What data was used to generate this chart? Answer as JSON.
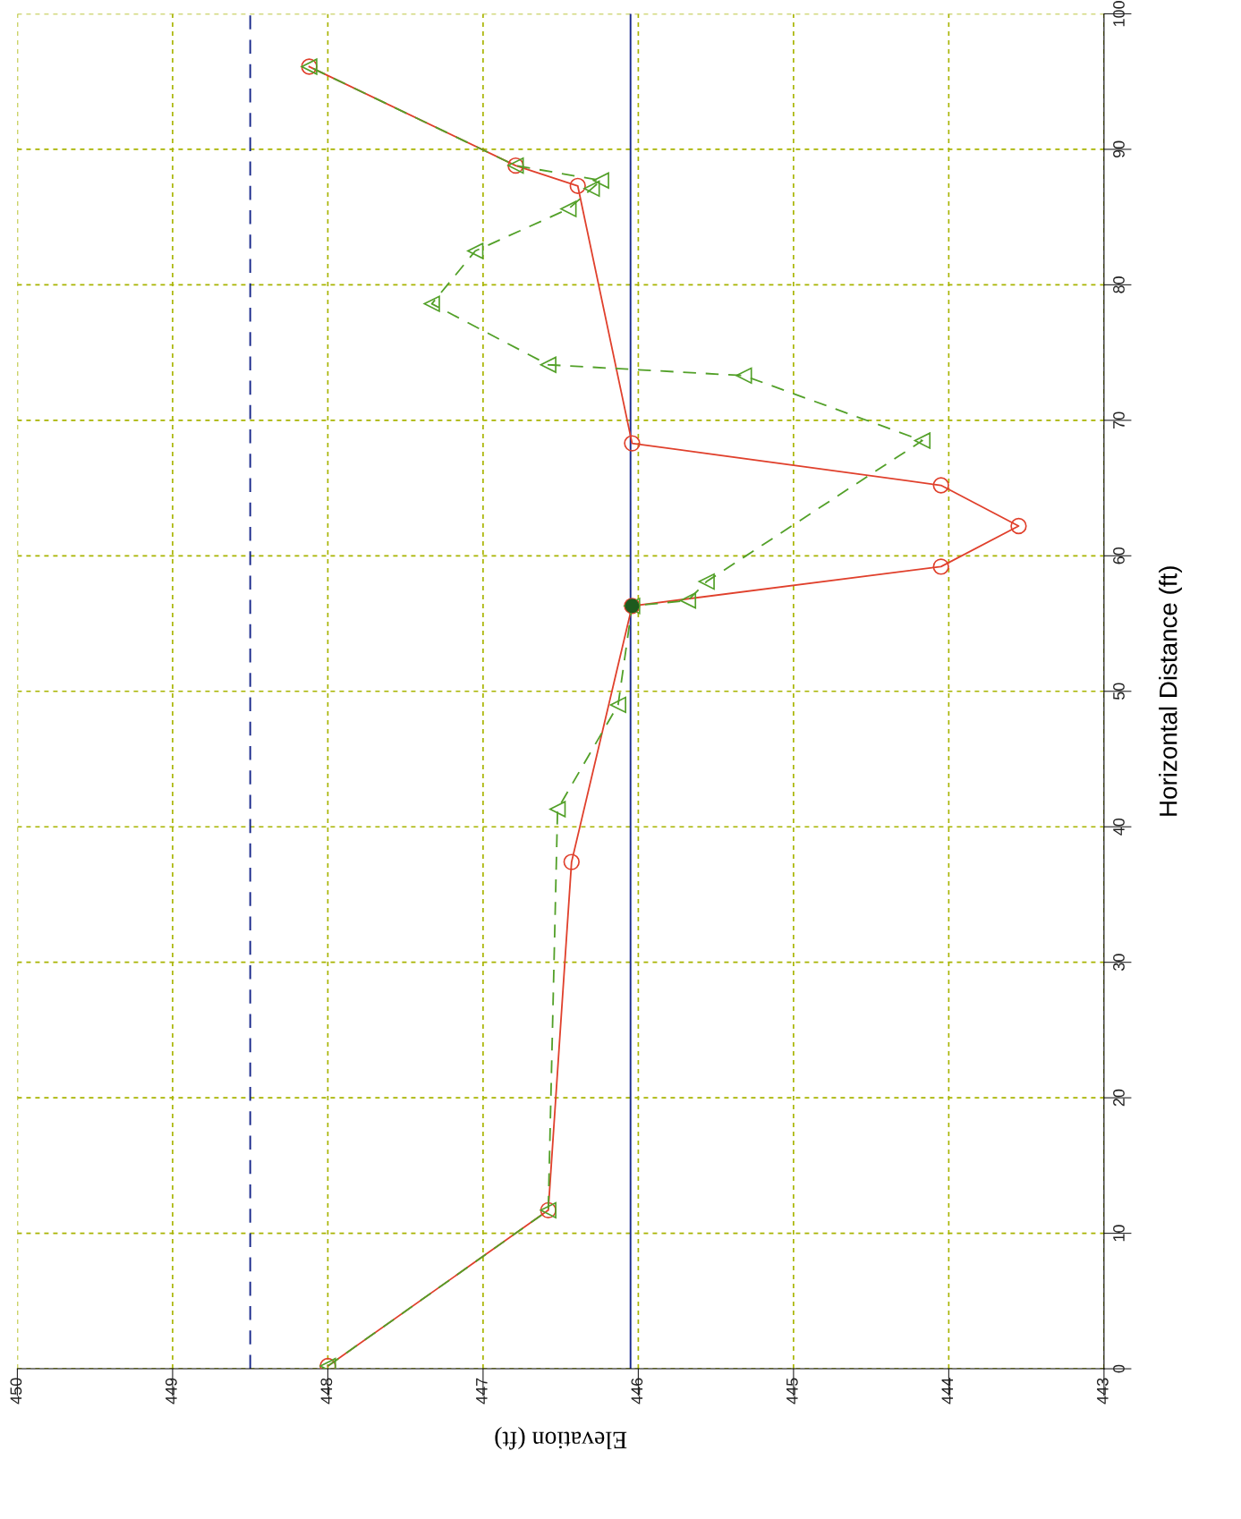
{
  "chart_data": {
    "type": "line",
    "xlabel": "Elevation (ft)",
    "ylabel": "Horizontal Distance (ft)",
    "xlim": [
      450,
      443
    ],
    "ylim": [
      0,
      100
    ],
    "xticks": [
      443,
      444,
      445,
      446,
      447,
      448,
      449,
      450
    ],
    "yticks": [
      0,
      10,
      20,
      30,
      40,
      50,
      60,
      70,
      80,
      90,
      100
    ],
    "grid": true,
    "series": [
      {
        "color": "#e0402c",
        "marker": "circle",
        "line_style": "solid",
        "x": [
          448.0,
          446.58,
          446.43,
          446.04,
          444.05,
          443.55,
          444.05,
          446.04,
          446.39,
          446.79,
          448.12
        ],
        "values": [
          0.2,
          11.7,
          37.4,
          56.3,
          59.2,
          62.2,
          65.2,
          68.3,
          87.3,
          88.8,
          96.1
        ]
      },
      {
        "color": "#52a028",
        "marker": "triangle",
        "line_style": "dashed",
        "x": [
          448.0,
          446.58,
          446.52,
          446.13,
          446.04,
          445.68,
          445.56,
          444.17,
          445.32,
          446.58,
          447.33,
          447.05,
          446.45,
          446.3,
          446.24,
          446.79,
          448.12
        ],
        "values": [
          0.2,
          11.7,
          41.3,
          49.0,
          56.3,
          56.7,
          58.1,
          68.5,
          73.3,
          74.1,
          78.6,
          82.5,
          85.6,
          87.1,
          87.7,
          88.8,
          96.1
        ]
      },
      {
        "type": "scatter",
        "color": "#1e5a1e",
        "marker": "circle",
        "x": [
          446.04
        ],
        "values": [
          56.3
        ]
      }
    ],
    "ref_lines": [
      {
        "axis": "x",
        "value": 448.5,
        "color": "#1a2a8c",
        "line_style": "dashed"
      },
      {
        "axis": "x",
        "value": 446.05,
        "color": "#1a2a8c",
        "line_style": "solid"
      }
    ]
  }
}
